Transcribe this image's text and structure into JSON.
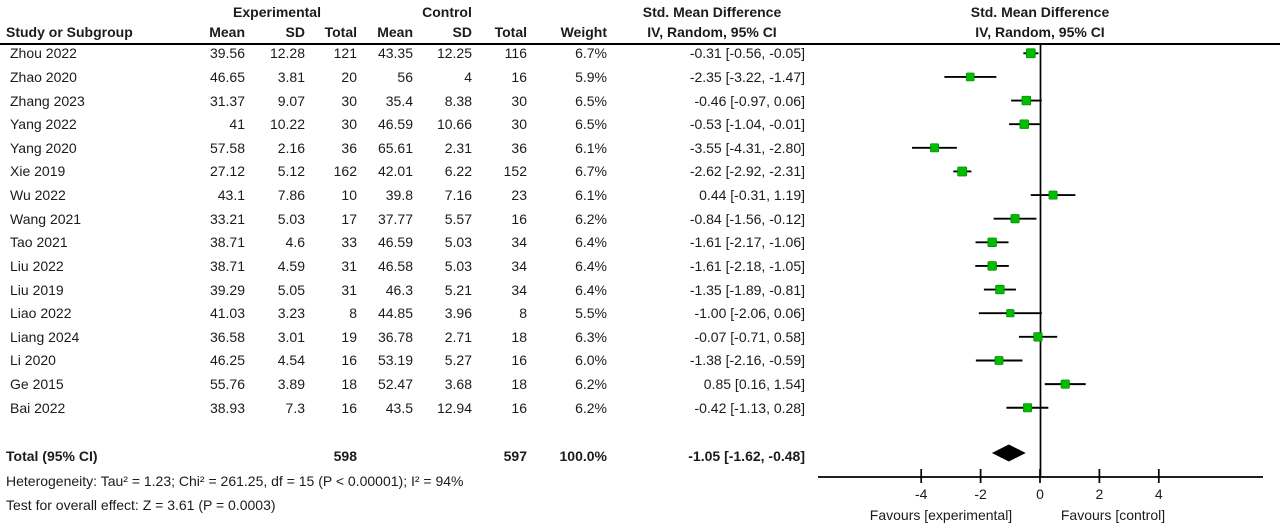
{
  "header": {
    "experimental": "Experimental",
    "control": "Control",
    "smd_text_col": "Std. Mean Difference",
    "smd_plot_col": "Std. Mean Difference",
    "study": "Study or Subgroup",
    "mean1": "Mean",
    "sd1": "SD",
    "total1": "Total",
    "mean2": "Mean",
    "sd2": "SD",
    "total2": "Total",
    "weight": "Weight",
    "ci_method": "IV, Random, 95% CI",
    "ci_method_plot": "IV, Random, 95% CI"
  },
  "colors": {
    "marker": "#00bd00",
    "marker_edge": "#008a00",
    "diamond": "#000000",
    "line": "#000000",
    "text": "#1b1b1b"
  },
  "chart_data": {
    "type": "forest",
    "effect_label": "Std. Mean Difference",
    "method_label": "IV, Random, 95% CI",
    "xlim": [
      -7.5,
      7.5
    ],
    "ticks": [
      -4,
      -2,
      0,
      2,
      4
    ],
    "favours_left": "Favours [experimental]",
    "favours_right": "Favours [control]",
    "studies": [
      {
        "study": "Zhou 2022",
        "exp_mean": "39.56",
        "exp_sd": "12.28",
        "exp_total": "121",
        "ctl_mean": "43.35",
        "ctl_sd": "12.25",
        "ctl_total": "116",
        "weight": "6.7%",
        "smd": -0.31,
        "lo": -0.56,
        "hi": -0.05,
        "ci_label": "-0.31 [-0.56, -0.05]"
      },
      {
        "study": "Zhao 2020",
        "exp_mean": "46.65",
        "exp_sd": "3.81",
        "exp_total": "20",
        "ctl_mean": "56",
        "ctl_sd": "4",
        "ctl_total": "16",
        "weight": "5.9%",
        "smd": -2.35,
        "lo": -3.22,
        "hi": -1.47,
        "ci_label": "-2.35 [-3.22, -1.47]"
      },
      {
        "study": "Zhang 2023",
        "exp_mean": "31.37",
        "exp_sd": "9.07",
        "exp_total": "30",
        "ctl_mean": "35.4",
        "ctl_sd": "8.38",
        "ctl_total": "30",
        "weight": "6.5%",
        "smd": -0.46,
        "lo": -0.97,
        "hi": 0.06,
        "ci_label": "-0.46 [-0.97, 0.06]"
      },
      {
        "study": "Yang 2022",
        "exp_mean": "41",
        "exp_sd": "10.22",
        "exp_total": "30",
        "ctl_mean": "46.59",
        "ctl_sd": "10.66",
        "ctl_total": "30",
        "weight": "6.5%",
        "smd": -0.53,
        "lo": -1.04,
        "hi": -0.01,
        "ci_label": "-0.53 [-1.04, -0.01]"
      },
      {
        "study": "Yang 2020",
        "exp_mean": "57.58",
        "exp_sd": "2.16",
        "exp_total": "36",
        "ctl_mean": "65.61",
        "ctl_sd": "2.31",
        "ctl_total": "36",
        "weight": "6.1%",
        "smd": -3.55,
        "lo": -4.31,
        "hi": -2.8,
        "ci_label": "-3.55 [-4.31, -2.80]"
      },
      {
        "study": "Xie 2019",
        "exp_mean": "27.12",
        "exp_sd": "5.12",
        "exp_total": "162",
        "ctl_mean": "42.01",
        "ctl_sd": "6.22",
        "ctl_total": "152",
        "weight": "6.7%",
        "smd": -2.62,
        "lo": -2.92,
        "hi": -2.31,
        "ci_label": "-2.62 [-2.92, -2.31]"
      },
      {
        "study": "Wu 2022",
        "exp_mean": "43.1",
        "exp_sd": "7.86",
        "exp_total": "10",
        "ctl_mean": "39.8",
        "ctl_sd": "7.16",
        "ctl_total": "23",
        "weight": "6.1%",
        "smd": 0.44,
        "lo": -0.31,
        "hi": 1.19,
        "ci_label": "0.44 [-0.31, 1.19]"
      },
      {
        "study": "Wang 2021",
        "exp_mean": "33.21",
        "exp_sd": "5.03",
        "exp_total": "17",
        "ctl_mean": "37.77",
        "ctl_sd": "5.57",
        "ctl_total": "16",
        "weight": "6.2%",
        "smd": -0.84,
        "lo": -1.56,
        "hi": -0.12,
        "ci_label": "-0.84 [-1.56, -0.12]"
      },
      {
        "study": "Tao 2021",
        "exp_mean": "38.71",
        "exp_sd": "4.6",
        "exp_total": "33",
        "ctl_mean": "46.59",
        "ctl_sd": "5.03",
        "ctl_total": "34",
        "weight": "6.4%",
        "smd": -1.61,
        "lo": -2.17,
        "hi": -1.06,
        "ci_label": "-1.61 [-2.17, -1.06]"
      },
      {
        "study": "Liu 2022",
        "exp_mean": "38.71",
        "exp_sd": "4.59",
        "exp_total": "31",
        "ctl_mean": "46.58",
        "ctl_sd": "5.03",
        "ctl_total": "34",
        "weight": "6.4%",
        "smd": -1.61,
        "lo": -2.18,
        "hi": -1.05,
        "ci_label": "-1.61 [-2.18, -1.05]"
      },
      {
        "study": "Liu 2019",
        "exp_mean": "39.29",
        "exp_sd": "5.05",
        "exp_total": "31",
        "ctl_mean": "46.3",
        "ctl_sd": "5.21",
        "ctl_total": "34",
        "weight": "6.4%",
        "smd": -1.35,
        "lo": -1.89,
        "hi": -0.81,
        "ci_label": "-1.35 [-1.89, -0.81]"
      },
      {
        "study": "Liao 2022",
        "exp_mean": "41.03",
        "exp_sd": "3.23",
        "exp_total": "8",
        "ctl_mean": "44.85",
        "ctl_sd": "3.96",
        "ctl_total": "8",
        "weight": "5.5%",
        "smd": -1.0,
        "lo": -2.06,
        "hi": 0.06,
        "ci_label": "-1.00 [-2.06, 0.06]"
      },
      {
        "study": "Liang 2024",
        "exp_mean": "36.58",
        "exp_sd": "3.01",
        "exp_total": "19",
        "ctl_mean": "36.78",
        "ctl_sd": "2.71",
        "ctl_total": "18",
        "weight": "6.3%",
        "smd": -0.07,
        "lo": -0.71,
        "hi": 0.58,
        "ci_label": "-0.07 [-0.71, 0.58]"
      },
      {
        "study": "Li 2020",
        "exp_mean": "46.25",
        "exp_sd": "4.54",
        "exp_total": "16",
        "ctl_mean": "53.19",
        "ctl_sd": "5.27",
        "ctl_total": "16",
        "weight": "6.0%",
        "smd": -1.38,
        "lo": -2.16,
        "hi": -0.59,
        "ci_label": "-1.38 [-2.16, -0.59]"
      },
      {
        "study": "Ge 2015",
        "exp_mean": "55.76",
        "exp_sd": "3.89",
        "exp_total": "18",
        "ctl_mean": "52.47",
        "ctl_sd": "3.68",
        "ctl_total": "18",
        "weight": "6.2%",
        "smd": 0.85,
        "lo": 0.16,
        "hi": 1.54,
        "ci_label": "0.85 [0.16, 1.54]"
      },
      {
        "study": "Bai 2022",
        "exp_mean": "38.93",
        "exp_sd": "7.3",
        "exp_total": "16",
        "ctl_mean": "43.5",
        "ctl_sd": "12.94",
        "ctl_total": "16",
        "weight": "6.2%",
        "smd": -0.42,
        "lo": -1.13,
        "hi": 0.28,
        "ci_label": "-0.42 [-1.13, 0.28]"
      }
    ],
    "total": {
      "label": "Total (95% CI)",
      "exp_total": "598",
      "ctl_total": "597",
      "weight": "100.0%",
      "smd": -1.05,
      "lo": -1.62,
      "hi": -0.48,
      "ci_label": "-1.05 [-1.62, -0.48]"
    },
    "heterogeneity": "Heterogeneity: Tau² = 1.23; Chi² = 261.25, df = 15 (P < 0.00001); I² = 94%",
    "overall_effect": "Test for overall effect: Z = 3.61 (P = 0.0003)"
  }
}
